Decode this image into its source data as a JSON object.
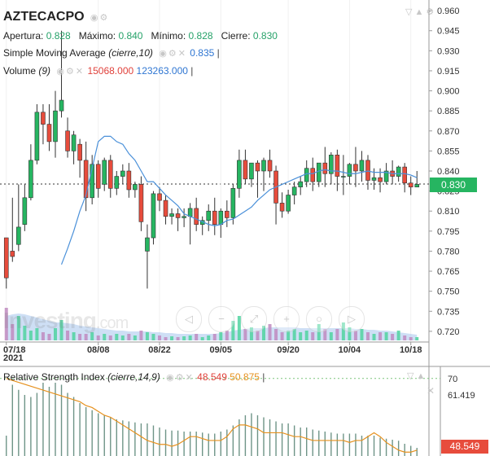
{
  "header": {
    "symbol": "AZTECACPO",
    "ohlc": {
      "open_label": "Apertura:",
      "open": "0.828",
      "high_label": "Máximo:",
      "high": "0.840",
      "low_label": "Mínimo:",
      "low": "0.828",
      "close_label": "Cierre:",
      "close": "0.830"
    }
  },
  "sma": {
    "label": "Simple Moving Average",
    "params": "(cierre,10)",
    "value": "0.835"
  },
  "volume": {
    "label": "Volume",
    "params": "(9)",
    "value_red": "15068.000",
    "value_blue": "123263.000"
  },
  "price_badge": "0.830",
  "rsi": {
    "label": "Relative Strength Index",
    "params": "(cierre,14,9)",
    "value1": "48.549",
    "value2": "50.875",
    "badge": "48.549"
  },
  "watermark": {
    "brand": "Investing",
    "suffix": ".com"
  },
  "icons": [
    "eye-icon",
    "settings-icon",
    "close-icon",
    "triangle-icon",
    "lock-icon",
    "arrow-left-icon",
    "zoom-out-icon",
    "zoom-reset-icon",
    "zoom-in-icon",
    "arrow-right-icon"
  ],
  "colors": {
    "up": "#26b561",
    "down": "#e74c3c",
    "sma": "#4a90d9",
    "rsi": "#e6911e",
    "volume_area": "#a5c4ec",
    "volume_blue": "#4a90e2"
  },
  "chart_data": {
    "type": "candlestick",
    "x_ticks": [
      {
        "label": "07/18",
        "i": 0,
        "sub": "2021"
      },
      {
        "label": "08/08",
        "i": 15
      },
      {
        "label": "08/22",
        "i": 25
      },
      {
        "label": "09/05",
        "i": 35
      },
      {
        "label": "09/20",
        "i": 46
      },
      {
        "label": "10/04",
        "i": 56
      },
      {
        "label": "10/18",
        "i": 66
      }
    ],
    "y_ticks": [
      "0.960",
      "0.945",
      "0.930",
      "0.915",
      "0.900",
      "0.885",
      "0.870",
      "0.855",
      "0.840",
      "0.825",
      "0.810",
      "0.795",
      "0.780",
      "0.765",
      "0.750",
      "0.735",
      "0.720"
    ],
    "ylim": [
      0.712,
      0.968
    ],
    "candles": [
      [
        0.79,
        0.79,
        0.76,
        0.752
      ],
      [
        0.78,
        0.82,
        0.776,
        0.772
      ],
      [
        0.785,
        0.83,
        0.798,
        0.78
      ],
      [
        0.8,
        0.83,
        0.82,
        0.795
      ],
      [
        0.82,
        0.86,
        0.848,
        0.818
      ],
      [
        0.848,
        0.89,
        0.884,
        0.845
      ],
      [
        0.884,
        0.89,
        0.875,
        0.86
      ],
      [
        0.875,
        0.89,
        0.862,
        0.855
      ],
      [
        0.862,
        0.9,
        0.885,
        0.85
      ],
      [
        0.885,
        0.945,
        0.893,
        0.88
      ],
      [
        0.87,
        0.88,
        0.855,
        0.85
      ],
      [
        0.855,
        0.87,
        0.867,
        0.845
      ],
      [
        0.86,
        0.864,
        0.848,
        0.835
      ],
      [
        0.848,
        0.862,
        0.82,
        0.81
      ],
      [
        0.82,
        0.852,
        0.845,
        0.815
      ],
      [
        0.845,
        0.848,
        0.827,
        0.82
      ],
      [
        0.83,
        0.85,
        0.848,
        0.825
      ],
      [
        0.848,
        0.852,
        0.827,
        0.82
      ],
      [
        0.827,
        0.84,
        0.836,
        0.822
      ],
      [
        0.836,
        0.845,
        0.84,
        0.83
      ],
      [
        0.84,
        0.846,
        0.826,
        0.82
      ],
      [
        0.826,
        0.832,
        0.83,
        0.82
      ],
      [
        0.83,
        0.836,
        0.802,
        0.795
      ],
      [
        0.78,
        0.8,
        0.79,
        0.752
      ],
      [
        0.79,
        0.825,
        0.823,
        0.785
      ],
      [
        0.823,
        0.828,
        0.818,
        0.81
      ],
      [
        0.818,
        0.822,
        0.806,
        0.8
      ],
      [
        0.806,
        0.812,
        0.808,
        0.8
      ],
      [
        0.808,
        0.812,
        0.805,
        0.795
      ],
      [
        0.805,
        0.812,
        0.806,
        0.798
      ],
      [
        0.806,
        0.816,
        0.812,
        0.785
      ],
      [
        0.812,
        0.82,
        0.8,
        0.795
      ],
      [
        0.8,
        0.806,
        0.803,
        0.792
      ],
      [
        0.803,
        0.815,
        0.81,
        0.795
      ],
      [
        0.81,
        0.82,
        0.8,
        0.792
      ],
      [
        0.8,
        0.812,
        0.81,
        0.79
      ],
      [
        0.81,
        0.818,
        0.805,
        0.798
      ],
      [
        0.805,
        0.83,
        0.827,
        0.8
      ],
      [
        0.827,
        0.856,
        0.848,
        0.82
      ],
      [
        0.848,
        0.856,
        0.834,
        0.83
      ],
      [
        0.834,
        0.845,
        0.846,
        0.828
      ],
      [
        0.846,
        0.848,
        0.84,
        0.82
      ],
      [
        0.84,
        0.85,
        0.848,
        0.825
      ],
      [
        0.848,
        0.856,
        0.84,
        0.835
      ],
      [
        0.84,
        0.844,
        0.816,
        0.8
      ],
      [
        0.816,
        0.824,
        0.81,
        0.805
      ],
      [
        0.81,
        0.826,
        0.822,
        0.808
      ],
      [
        0.822,
        0.832,
        0.828,
        0.815
      ],
      [
        0.828,
        0.836,
        0.832,
        0.822
      ],
      [
        0.832,
        0.848,
        0.842,
        0.828
      ],
      [
        0.842,
        0.85,
        0.832,
        0.825
      ],
      [
        0.832,
        0.84,
        0.846,
        0.828
      ],
      [
        0.846,
        0.858,
        0.838,
        0.828
      ],
      [
        0.838,
        0.854,
        0.852,
        0.83
      ],
      [
        0.852,
        0.856,
        0.836,
        0.825
      ],
      [
        0.836,
        0.852,
        0.836,
        0.822
      ],
      [
        0.836,
        0.846,
        0.845,
        0.83
      ],
      [
        0.845,
        0.858,
        0.84,
        0.828
      ],
      [
        0.84,
        0.855,
        0.848,
        0.832
      ],
      [
        0.848,
        0.852,
        0.833,
        0.826
      ],
      [
        0.833,
        0.842,
        0.835,
        0.826
      ],
      [
        0.835,
        0.842,
        0.832,
        0.824
      ],
      [
        0.832,
        0.846,
        0.84,
        0.83
      ],
      [
        0.84,
        0.848,
        0.836,
        0.83
      ],
      [
        0.836,
        0.844,
        0.843,
        0.832
      ],
      [
        0.843,
        0.846,
        0.831,
        0.824
      ],
      [
        0.831,
        0.836,
        0.828,
        0.822
      ],
      [
        0.828,
        0.84,
        0.83,
        0.828
      ]
    ],
    "sma": [
      null,
      null,
      null,
      null,
      null,
      null,
      null,
      null,
      null,
      0.77,
      0.782,
      0.795,
      0.81,
      0.822,
      0.842,
      0.862,
      0.866,
      0.866,
      0.862,
      0.86,
      0.853,
      0.848,
      0.84,
      0.832,
      0.832,
      0.827,
      0.822,
      0.818,
      0.814,
      0.808,
      0.806,
      0.804,
      0.802,
      0.8,
      0.799,
      0.8,
      0.803,
      0.804,
      0.807,
      0.81,
      0.813,
      0.818,
      0.822,
      0.826,
      0.828,
      0.83,
      0.832,
      0.834,
      0.836,
      0.838,
      0.838,
      0.84,
      0.841,
      0.84,
      0.84,
      0.839,
      0.838,
      0.838,
      0.839,
      0.84,
      0.839,
      0.839,
      0.839,
      0.838,
      0.838,
      0.838,
      0.837,
      0.835
    ],
    "volume": [
      40,
      20,
      30,
      18,
      12,
      15,
      10,
      8,
      15,
      25,
      12,
      10,
      8,
      8,
      10,
      6,
      8,
      6,
      8,
      6,
      8,
      6,
      12,
      10,
      8,
      6,
      4,
      5,
      4,
      5,
      6,
      8,
      4,
      6,
      8,
      10,
      12,
      24,
      30,
      14,
      16,
      12,
      18,
      20,
      14,
      10,
      12,
      14,
      10,
      12,
      10,
      20,
      14,
      10,
      14,
      22,
      16,
      12,
      14,
      10,
      8,
      10,
      10,
      8,
      12,
      6,
      4,
      4
    ],
    "volume_area": [
      30,
      32,
      33,
      32,
      30,
      28,
      26,
      24,
      22,
      22,
      21,
      20,
      18,
      17,
      16,
      15,
      14,
      13,
      12,
      12,
      11,
      11,
      11,
      11,
      10,
      10,
      9,
      9,
      8,
      8,
      8,
      8,
      8,
      8,
      8,
      9,
      10,
      12,
      13,
      14,
      15,
      15,
      15,
      16,
      16,
      16,
      16,
      16,
      15,
      15,
      15,
      15,
      15,
      15,
      15,
      15,
      15,
      14,
      14,
      13,
      13,
      12,
      12,
      11,
      10,
      9,
      8,
      7
    ],
    "rsi_ylim": [
      30,
      72
    ],
    "rsi_ticks": [
      {
        "label": "70",
        "v": 70
      },
      {
        "label": "61.419",
        "v": 61.419
      }
    ],
    "rsi_hist": [
      20,
      70,
      65,
      60,
      58,
      62,
      72,
      68,
      72,
      70,
      62,
      58,
      52,
      48,
      45,
      42,
      40,
      38,
      36,
      35,
      34,
      33,
      32,
      32,
      30,
      28,
      26,
      25,
      25,
      24,
      24,
      24,
      23,
      22,
      22,
      24,
      26,
      30,
      36,
      40,
      42,
      40,
      38,
      36,
      34,
      32,
      32,
      30,
      28,
      28,
      26,
      25,
      24,
      23,
      22,
      22,
      22,
      22,
      20,
      20,
      20,
      18,
      17,
      16,
      15,
      12,
      10,
      8
    ],
    "rsi_line": [
      70,
      69,
      68,
      67,
      66,
      65,
      64,
      63,
      62,
      61,
      60,
      59,
      58,
      56,
      55,
      53,
      51,
      50,
      48,
      46,
      44,
      42,
      40,
      38,
      37,
      36,
      36,
      35,
      36,
      38,
      40,
      40,
      39,
      38,
      38,
      38,
      40,
      44,
      46,
      46,
      45,
      44,
      42,
      42,
      42,
      42,
      41,
      40,
      40,
      39,
      38,
      38,
      38,
      38,
      38,
      38,
      37,
      38,
      38,
      40,
      42,
      40,
      37,
      35,
      33,
      32,
      32,
      33
    ]
  }
}
